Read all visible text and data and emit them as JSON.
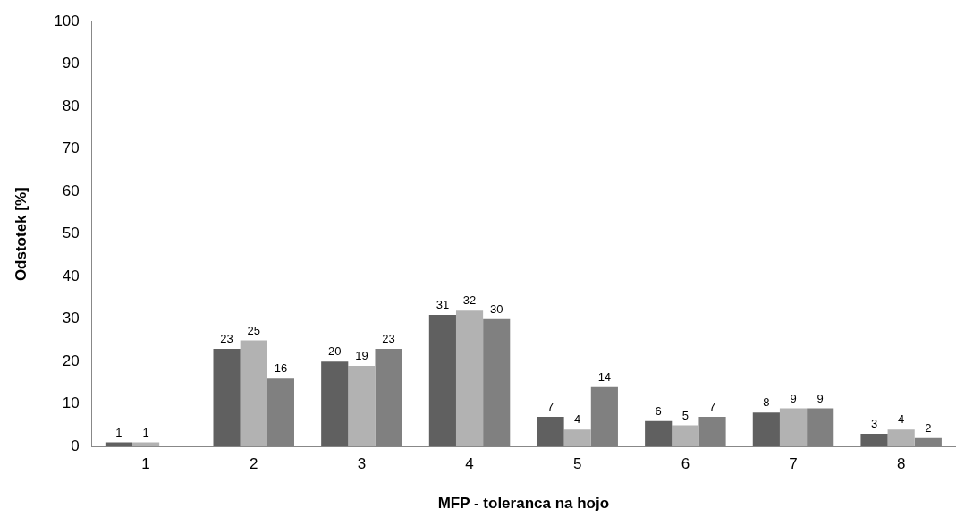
{
  "chart_data": {
    "type": "bar",
    "xlabel": "MFP - toleranca na hojo",
    "ylabel": "Odstotek [%]",
    "categories": [
      "1",
      "2",
      "3",
      "4",
      "5",
      "6",
      "7",
      "8"
    ],
    "series": [
      {
        "color": "#606060",
        "values": [
          1,
          23,
          20,
          31,
          7,
          6,
          8,
          3
        ]
      },
      {
        "color": "#b2b2b2",
        "values": [
          1,
          25,
          19,
          32,
          4,
          5,
          9,
          4
        ]
      },
      {
        "color": "#808080",
        "values": [
          null,
          16,
          23,
          30,
          14,
          7,
          9,
          2
        ]
      }
    ],
    "ylim": [
      0,
      100
    ],
    "yticks": [
      0,
      10,
      20,
      30,
      40,
      50,
      60,
      70,
      80,
      90,
      100
    ],
    "grid": false,
    "legend": false,
    "data_labels": true
  }
}
